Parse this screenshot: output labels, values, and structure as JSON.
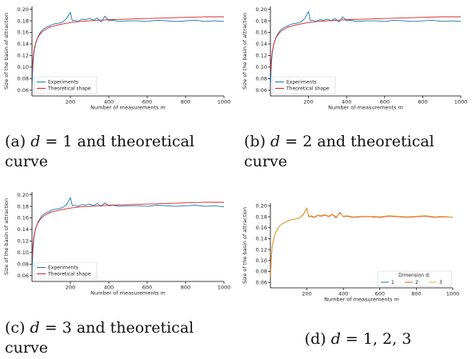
{
  "chart_data": [
    {
      "panel": "a",
      "type": "line",
      "xlabel": "Number of measurements m",
      "ylabel": "Size of the basin of attraction",
      "xlim": [
        0,
        1000
      ],
      "ylim": [
        0.05,
        0.205
      ],
      "xticks": [
        200,
        400,
        600,
        800,
        1000
      ],
      "yticks": [
        0.06,
        0.08,
        0.1,
        0.12,
        0.14,
        0.16,
        0.18,
        0.2
      ],
      "legend": "lower-left",
      "series": [
        {
          "name": "Experiments",
          "color": "#1f77b4",
          "x": [
            1,
            5,
            10,
            15,
            20,
            30,
            40,
            50,
            60,
            70,
            80,
            90,
            100,
            120,
            140,
            160,
            180,
            200,
            210,
            220,
            240,
            260,
            280,
            300,
            320,
            340,
            360,
            380,
            400,
            420,
            450,
            500,
            550,
            600,
            650,
            700,
            750,
            800,
            850,
            900,
            950,
            1000
          ],
          "y": [
            0.07,
            0.105,
            0.125,
            0.135,
            0.142,
            0.152,
            0.158,
            0.163,
            0.166,
            0.168,
            0.17,
            0.171,
            0.173,
            0.175,
            0.176,
            0.178,
            0.184,
            0.195,
            0.18,
            0.181,
            0.179,
            0.183,
            0.182,
            0.184,
            0.181,
            0.185,
            0.178,
            0.188,
            0.18,
            0.181,
            0.179,
            0.18,
            0.18,
            0.179,
            0.181,
            0.18,
            0.179,
            0.18,
            0.181,
            0.179,
            0.18,
            0.179
          ]
        },
        {
          "name": "Theoretical shape",
          "color": "#d62728",
          "x": [
            1,
            5,
            10,
            20,
            30,
            40,
            50,
            60,
            80,
            100,
            125,
            150,
            200,
            250,
            300,
            400,
            500,
            600,
            700,
            800,
            900,
            1000
          ],
          "y": [
            0.09,
            0.113,
            0.128,
            0.143,
            0.151,
            0.156,
            0.16,
            0.163,
            0.167,
            0.17,
            0.172,
            0.174,
            0.177,
            0.179,
            0.18,
            0.182,
            0.183,
            0.184,
            0.185,
            0.186,
            0.187,
            0.187
          ]
        }
      ]
    },
    {
      "panel": "b",
      "type": "line",
      "xlabel": "Number of measurements m",
      "ylabel": "Size of the basin of attraction",
      "xlim": [
        0,
        1000
      ],
      "ylim": [
        0.05,
        0.205
      ],
      "xticks": [
        200,
        400,
        600,
        800,
        1000
      ],
      "yticks": [
        0.06,
        0.08,
        0.1,
        0.12,
        0.14,
        0.16,
        0.18,
        0.2
      ],
      "legend": "lower-left",
      "series": [
        {
          "name": "Experiments",
          "color": "#1f77b4",
          "x": [
            1,
            5,
            10,
            15,
            20,
            30,
            40,
            50,
            60,
            70,
            80,
            90,
            100,
            120,
            140,
            160,
            180,
            200,
            210,
            220,
            240,
            260,
            280,
            300,
            320,
            340,
            360,
            380,
            400,
            420,
            450,
            500,
            550,
            600,
            650,
            700,
            750,
            800,
            850,
            900,
            950,
            1000
          ],
          "y": [
            0.07,
            0.105,
            0.125,
            0.135,
            0.142,
            0.152,
            0.158,
            0.163,
            0.166,
            0.168,
            0.17,
            0.171,
            0.173,
            0.175,
            0.176,
            0.178,
            0.184,
            0.196,
            0.18,
            0.181,
            0.179,
            0.182,
            0.181,
            0.183,
            0.18,
            0.184,
            0.178,
            0.187,
            0.18,
            0.181,
            0.179,
            0.18,
            0.18,
            0.179,
            0.181,
            0.18,
            0.179,
            0.18,
            0.181,
            0.179,
            0.18,
            0.179
          ]
        },
        {
          "name": "Theoretical shape",
          "color": "#d62728",
          "x": [
            1,
            5,
            10,
            20,
            30,
            40,
            50,
            60,
            80,
            100,
            125,
            150,
            200,
            250,
            300,
            400,
            500,
            600,
            700,
            800,
            900,
            1000
          ],
          "y": [
            0.09,
            0.113,
            0.128,
            0.143,
            0.151,
            0.156,
            0.16,
            0.163,
            0.167,
            0.17,
            0.172,
            0.174,
            0.177,
            0.179,
            0.18,
            0.182,
            0.183,
            0.184,
            0.185,
            0.186,
            0.187,
            0.187
          ]
        }
      ]
    },
    {
      "panel": "c",
      "type": "line",
      "xlabel": "Number of measurements m",
      "ylabel": "Size of the basin of attraction",
      "xlim": [
        0,
        1000
      ],
      "ylim": [
        0.05,
        0.205
      ],
      "xticks": [
        200,
        400,
        600,
        800,
        1000
      ],
      "yticks": [
        0.06,
        0.08,
        0.1,
        0.12,
        0.14,
        0.16,
        0.18,
        0.2
      ],
      "legend": "lower-left",
      "series": [
        {
          "name": "Experiments",
          "color": "#1f77b4",
          "x": [
            1,
            5,
            10,
            15,
            20,
            30,
            40,
            50,
            60,
            70,
            80,
            90,
            100,
            120,
            140,
            160,
            180,
            200,
            210,
            220,
            240,
            260,
            280,
            300,
            320,
            340,
            360,
            380,
            400,
            420,
            450,
            500,
            550,
            600,
            650,
            700,
            750,
            800,
            850,
            900,
            950,
            1000
          ],
          "y": [
            0.07,
            0.105,
            0.125,
            0.135,
            0.142,
            0.152,
            0.158,
            0.163,
            0.166,
            0.168,
            0.17,
            0.171,
            0.173,
            0.175,
            0.176,
            0.178,
            0.183,
            0.195,
            0.181,
            0.182,
            0.18,
            0.183,
            0.182,
            0.184,
            0.181,
            0.185,
            0.18,
            0.186,
            0.181,
            0.182,
            0.18,
            0.181,
            0.181,
            0.18,
            0.182,
            0.181,
            0.18,
            0.181,
            0.182,
            0.18,
            0.181,
            0.179
          ]
        },
        {
          "name": "Theoretical shape",
          "color": "#d62728",
          "x": [
            1,
            5,
            10,
            20,
            30,
            40,
            50,
            60,
            80,
            100,
            125,
            150,
            200,
            250,
            300,
            400,
            500,
            600,
            700,
            800,
            900,
            1000
          ],
          "y": [
            0.09,
            0.113,
            0.128,
            0.143,
            0.151,
            0.156,
            0.16,
            0.163,
            0.167,
            0.17,
            0.172,
            0.174,
            0.177,
            0.179,
            0.18,
            0.182,
            0.183,
            0.184,
            0.185,
            0.186,
            0.187,
            0.187
          ]
        }
      ]
    },
    {
      "panel": "d",
      "type": "line",
      "xlabel": "Number of measurements m",
      "ylabel": "Size of the basin of attraction",
      "xlim": [
        0,
        1000
      ],
      "ylim": [
        0.05,
        0.205
      ],
      "xticks": [
        200,
        400,
        600,
        800,
        1000
      ],
      "yticks": [
        0.06,
        0.08,
        0.1,
        0.12,
        0.14,
        0.16,
        0.18,
        0.2
      ],
      "legend": "lower-right",
      "legend_title": "Dimension d:",
      "series": [
        {
          "name": "1",
          "color": "#1f77b4",
          "x": [
            1,
            5,
            10,
            15,
            20,
            30,
            40,
            50,
            60,
            70,
            80,
            90,
            100,
            120,
            140,
            160,
            180,
            200,
            210,
            220,
            240,
            260,
            280,
            300,
            320,
            340,
            360,
            380,
            400,
            420,
            450,
            500,
            550,
            600,
            650,
            700,
            750,
            800,
            850,
            900,
            950,
            1000
          ],
          "y": [
            0.07,
            0.105,
            0.125,
            0.135,
            0.142,
            0.152,
            0.158,
            0.163,
            0.166,
            0.168,
            0.17,
            0.171,
            0.173,
            0.175,
            0.176,
            0.178,
            0.184,
            0.195,
            0.18,
            0.181,
            0.179,
            0.183,
            0.182,
            0.184,
            0.181,
            0.185,
            0.178,
            0.188,
            0.18,
            0.181,
            0.179,
            0.18,
            0.18,
            0.179,
            0.181,
            0.18,
            0.179,
            0.18,
            0.181,
            0.179,
            0.18,
            0.179
          ]
        },
        {
          "name": "2",
          "color": "#e8582a",
          "x": [
            1,
            5,
            10,
            15,
            20,
            30,
            40,
            50,
            60,
            70,
            80,
            90,
            100,
            120,
            140,
            160,
            180,
            200,
            210,
            220,
            240,
            260,
            280,
            300,
            320,
            340,
            360,
            380,
            400,
            420,
            450,
            500,
            550,
            600,
            650,
            700,
            750,
            800,
            850,
            900,
            950,
            1000
          ],
          "y": [
            0.07,
            0.105,
            0.125,
            0.135,
            0.142,
            0.152,
            0.158,
            0.163,
            0.166,
            0.168,
            0.17,
            0.171,
            0.173,
            0.175,
            0.176,
            0.178,
            0.184,
            0.196,
            0.18,
            0.181,
            0.179,
            0.182,
            0.181,
            0.183,
            0.18,
            0.184,
            0.178,
            0.187,
            0.18,
            0.181,
            0.179,
            0.18,
            0.18,
            0.179,
            0.181,
            0.18,
            0.179,
            0.18,
            0.181,
            0.179,
            0.18,
            0.179
          ]
        },
        {
          "name": "3",
          "color": "#f2a93b",
          "x": [
            1,
            5,
            10,
            15,
            20,
            30,
            40,
            50,
            60,
            70,
            80,
            90,
            100,
            120,
            140,
            160,
            180,
            200,
            210,
            220,
            240,
            260,
            280,
            300,
            320,
            340,
            360,
            380,
            400,
            420,
            450,
            500,
            550,
            600,
            650,
            700,
            750,
            800,
            850,
            900,
            950,
            1000
          ],
          "y": [
            0.07,
            0.105,
            0.125,
            0.135,
            0.142,
            0.152,
            0.158,
            0.163,
            0.166,
            0.168,
            0.17,
            0.171,
            0.173,
            0.175,
            0.176,
            0.178,
            0.183,
            0.195,
            0.181,
            0.182,
            0.18,
            0.183,
            0.182,
            0.184,
            0.181,
            0.185,
            0.18,
            0.186,
            0.181,
            0.182,
            0.18,
            0.181,
            0.181,
            0.18,
            0.182,
            0.181,
            0.18,
            0.181,
            0.182,
            0.18,
            0.181,
            0.179
          ]
        }
      ]
    }
  ],
  "captions": {
    "a": {
      "prefix": "(a) ",
      "var": "d",
      "rest": " = 1 and theoretical",
      "line2": "curve"
    },
    "b": {
      "prefix": "(b) ",
      "var": "d",
      "rest": " = 2 and theoretical",
      "line2": "curve"
    },
    "c": {
      "prefix": "(c) ",
      "var": "d",
      "rest": " = 3 and theoretical",
      "line2": "curve"
    },
    "d": {
      "prefix": "(d) ",
      "var": "d",
      "rest": " = 1, 2, 3"
    }
  }
}
